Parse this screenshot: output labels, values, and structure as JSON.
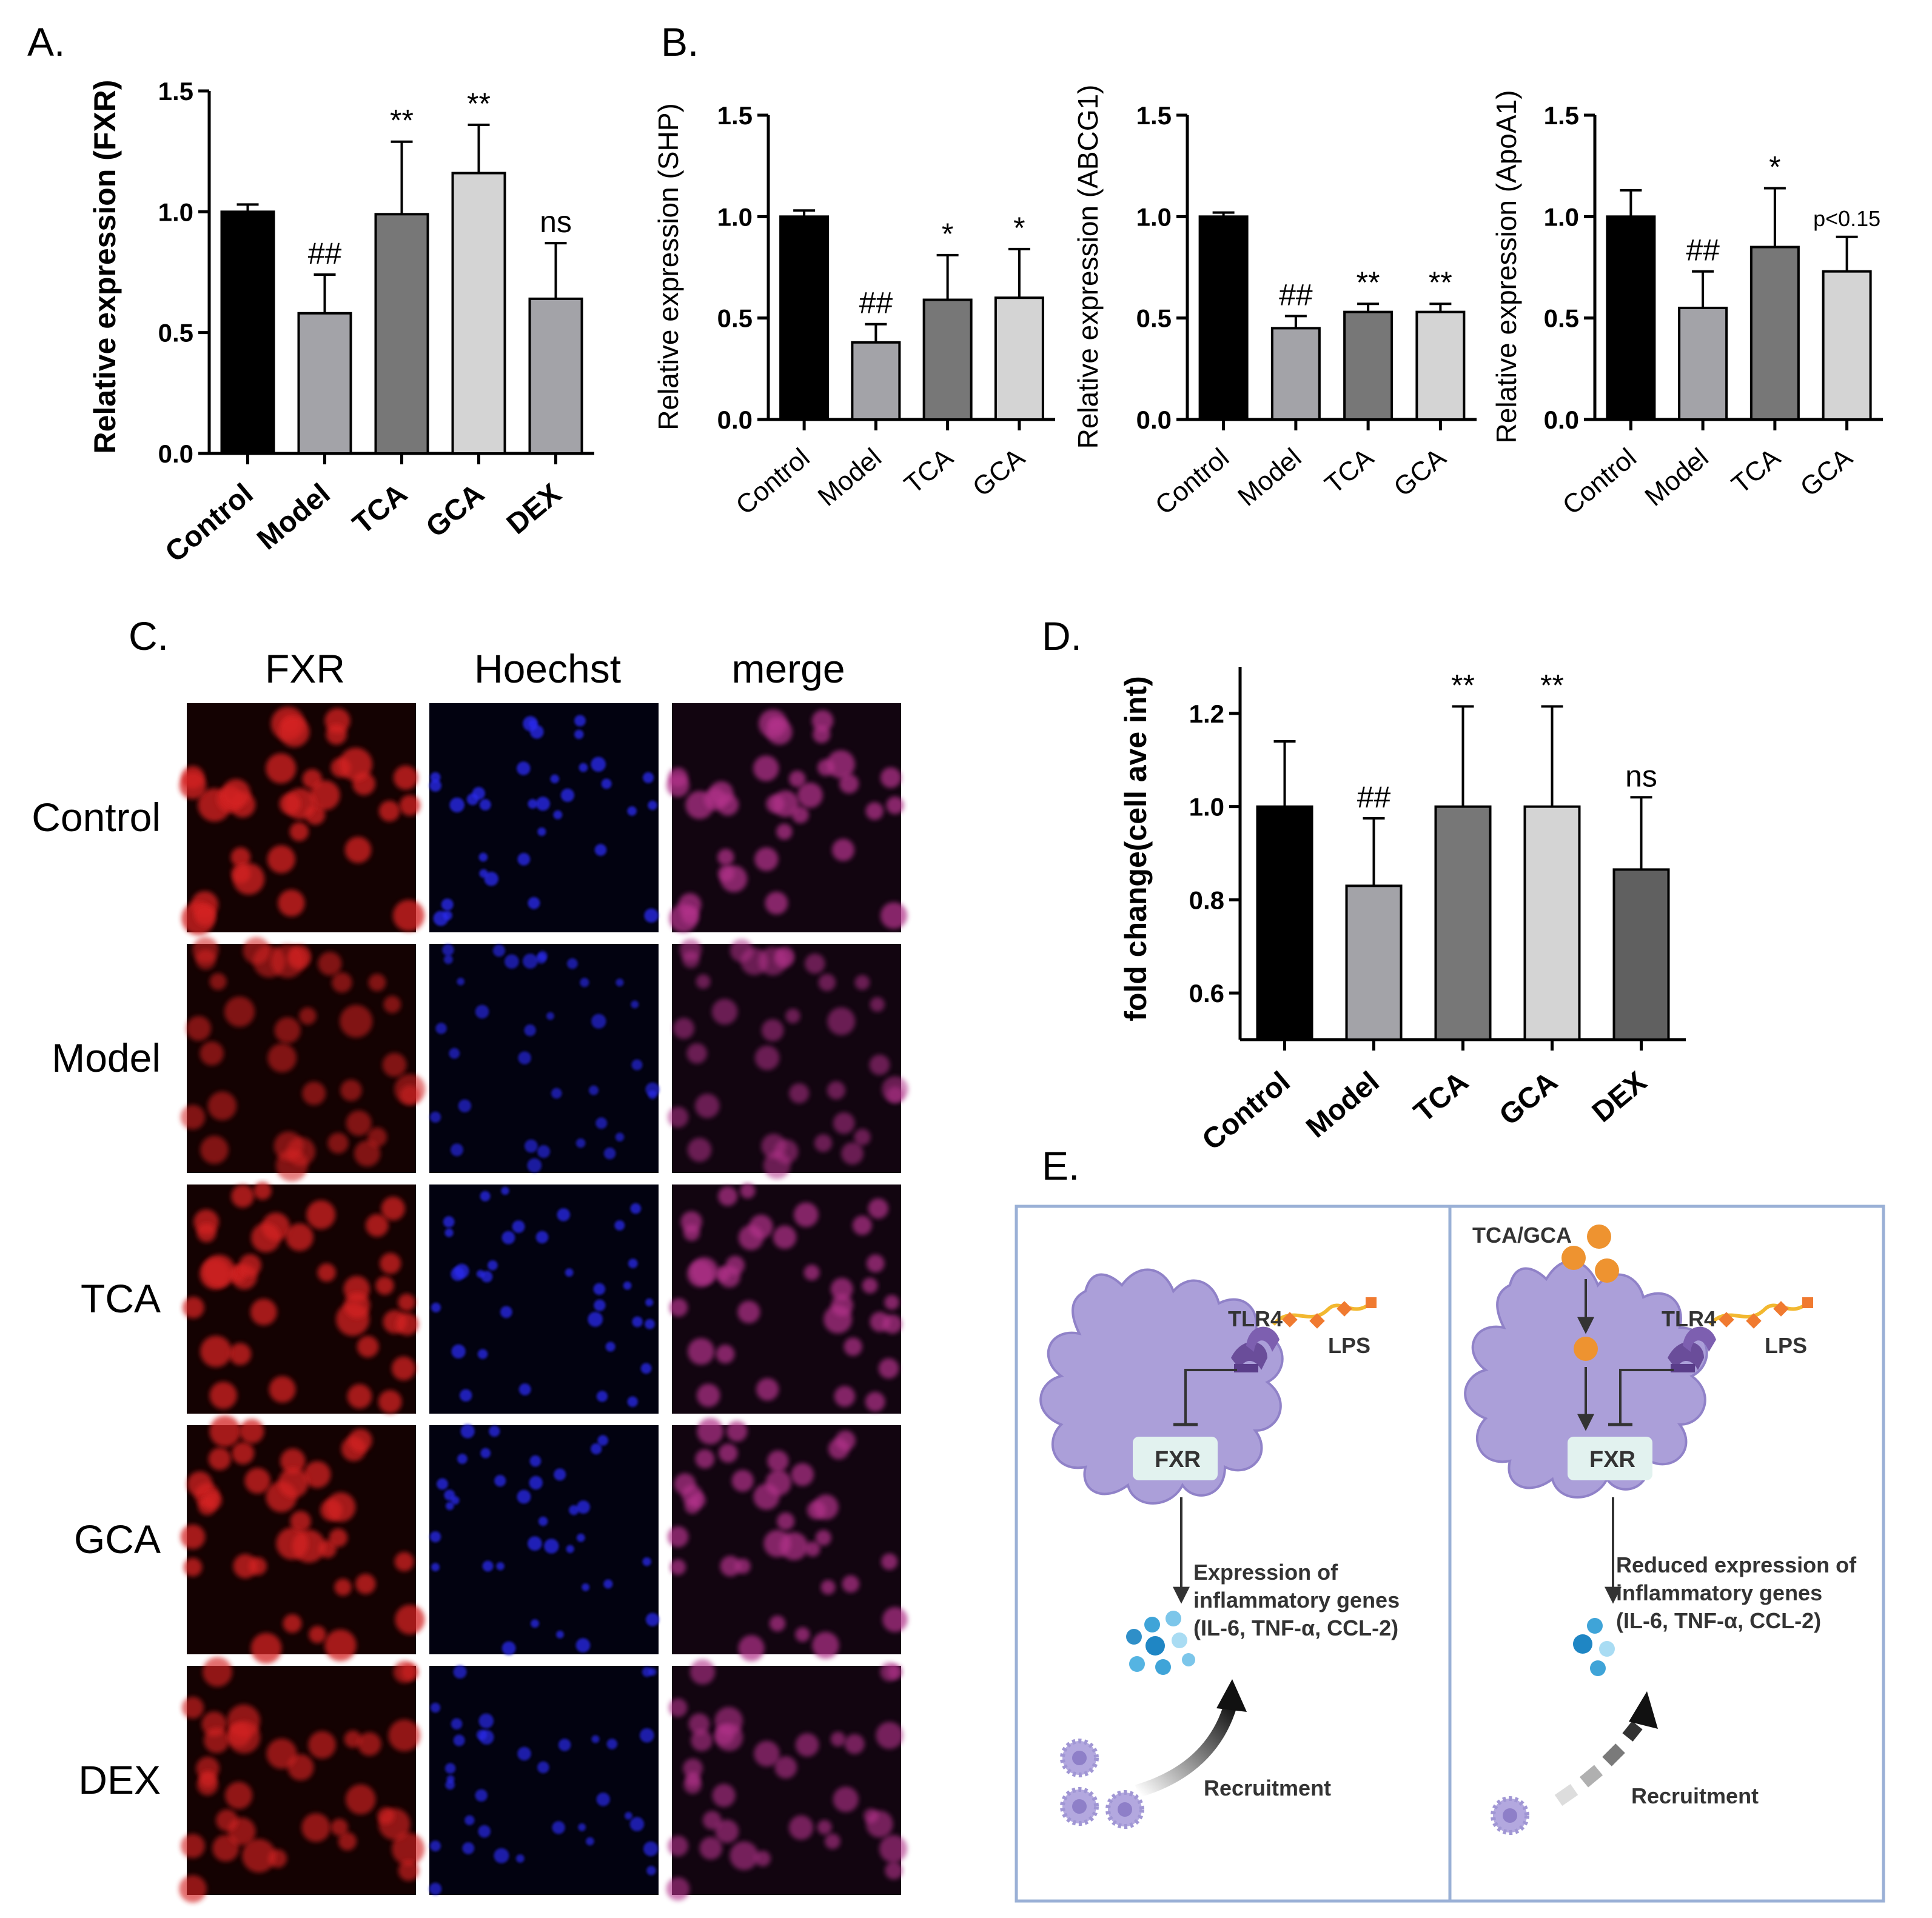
{
  "panels": {
    "A": "A.",
    "B": "B.",
    "C": "C.",
    "D": "D.",
    "E": "E."
  },
  "chart_data": [
    {
      "id": "A",
      "type": "bar",
      "ylabel": "Relative expression  (FXR)",
      "ylim": [
        0,
        1.5
      ],
      "yticks": [
        "0.0",
        "0.5",
        "1.0",
        "1.5"
      ],
      "categories": [
        "Control",
        "Model",
        "TCA",
        "GCA",
        "DEX"
      ],
      "values": [
        1.0,
        0.58,
        0.99,
        1.16,
        0.64
      ],
      "errors": [
        0.03,
        0.16,
        0.3,
        0.2,
        0.23
      ],
      "annotations": [
        "",
        "##",
        "**",
        "**",
        "ns"
      ],
      "colors": [
        "#000000",
        "#a3a3a8",
        "#777777",
        "#d4d4d4",
        "#a3a3a8"
      ]
    },
    {
      "id": "B1",
      "type": "bar",
      "ylabel": "Relative expression  (SHP)",
      "ylim": [
        0,
        1.5
      ],
      "yticks": [
        "0.0",
        "0.5",
        "1.0",
        "1.5"
      ],
      "categories": [
        "Control",
        "Model",
        "TCA",
        "GCA"
      ],
      "values": [
        1.0,
        0.38,
        0.59,
        0.6
      ],
      "errors": [
        0.03,
        0.09,
        0.22,
        0.24
      ],
      "annotations": [
        "",
        "##",
        "*",
        "*"
      ],
      "colors": [
        "#000000",
        "#a3a3a8",
        "#777777",
        "#d4d4d4"
      ]
    },
    {
      "id": "B2",
      "type": "bar",
      "ylabel": "Relative expression  (ABCG1)",
      "ylim": [
        0,
        1.5
      ],
      "yticks": [
        "0.0",
        "0.5",
        "1.0",
        "1.5"
      ],
      "categories": [
        "Control",
        "Model",
        "TCA",
        "GCA"
      ],
      "values": [
        1.0,
        0.45,
        0.53,
        0.53
      ],
      "errors": [
        0.02,
        0.06,
        0.04,
        0.04
      ],
      "annotations": [
        "",
        "##",
        "**",
        "**"
      ],
      "colors": [
        "#000000",
        "#a3a3a8",
        "#777777",
        "#d4d4d4"
      ]
    },
    {
      "id": "B3",
      "type": "bar",
      "ylabel": "Relative expression  (ApoA1)",
      "ylim": [
        0,
        1.5
      ],
      "yticks": [
        "0.0",
        "0.5",
        "1.0",
        "1.5"
      ],
      "categories": [
        "Control",
        "Model",
        "TCA",
        "GCA"
      ],
      "values": [
        1.0,
        0.55,
        0.85,
        0.73
      ],
      "errors": [
        0.13,
        0.18,
        0.29,
        0.17
      ],
      "annotations": [
        "",
        "##",
        "*",
        "p<0.15"
      ],
      "colors": [
        "#000000",
        "#a3a3a8",
        "#777777",
        "#d4d4d4"
      ]
    },
    {
      "id": "D",
      "type": "bar",
      "ylabel": "fold change(cell ave int)",
      "ylim": [
        0.5,
        1.3
      ],
      "yticks": [
        "0.6",
        "0.8",
        "1.0",
        "1.2"
      ],
      "categories": [
        "Control",
        "Model",
        "TCA",
        "GCA",
        "DEX"
      ],
      "values": [
        1.0,
        0.83,
        1.0,
        1.0,
        0.865
      ],
      "errors": [
        0.14,
        0.145,
        0.215,
        0.215,
        0.155
      ],
      "annotations": [
        "",
        "##",
        "**",
        "**",
        "ns"
      ],
      "colors": [
        "#000000",
        "#a3a3a8",
        "#777777",
        "#d4d4d4",
        "#606060"
      ]
    }
  ],
  "microscopy": {
    "columns": [
      "FXR",
      "Hoechst",
      "merge"
    ],
    "rows": [
      "Control",
      "Model",
      "TCA",
      "GCA",
      "DEX"
    ],
    "intensity": [
      0.85,
      0.45,
      0.8,
      0.8,
      0.6
    ]
  },
  "diagram": {
    "left": {
      "tlr4": "TLR4",
      "lps": "LPS",
      "fxr": "FXR",
      "expression": [
        "Expression of",
        "inflammatory genes",
        "(IL-6, TNF-α, CCL-2)"
      ],
      "recruitment": "Recruitment"
    },
    "right": {
      "ligand": "TCA/GCA",
      "tlr4": "TLR4",
      "lps": "LPS",
      "fxr": "FXR",
      "expression": [
        "Reduced expression of",
        "inflammatory genes",
        "(IL-6, TNF-α, CCL-2)"
      ],
      "recruitment": "Recruitment"
    }
  }
}
